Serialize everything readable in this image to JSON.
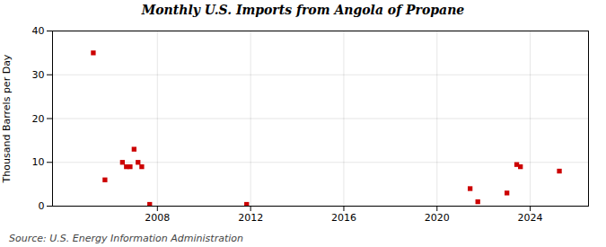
{
  "chart_data": {
    "type": "scatter",
    "title": "Monthly U.S. Imports from Angola of Propane",
    "ylabel": "Thousand Barrels per Day",
    "source": "Source: U.S. Energy Information Administration",
    "x": [
      2005.25,
      2005.75,
      2006.5,
      2006.67,
      2006.83,
      2007.0,
      2007.17,
      2007.33,
      2007.67,
      2011.83,
      2021.42,
      2021.75,
      2023.0,
      2023.42,
      2023.58,
      2025.25
    ],
    "values": [
      35,
      6,
      10,
      9,
      9,
      13,
      10,
      9,
      0.4,
      0.4,
      4,
      1,
      3,
      9.5,
      9,
      8
    ],
    "color": "#cc0000",
    "marker": "square",
    "xlim": [
      2003.5,
      2026.5
    ],
    "xticks": [
      2008,
      2012,
      2016,
      2020,
      2024
    ],
    "ylim": [
      0,
      40
    ],
    "yticks": [
      0,
      10,
      20,
      30,
      40
    ],
    "grid": true
  }
}
